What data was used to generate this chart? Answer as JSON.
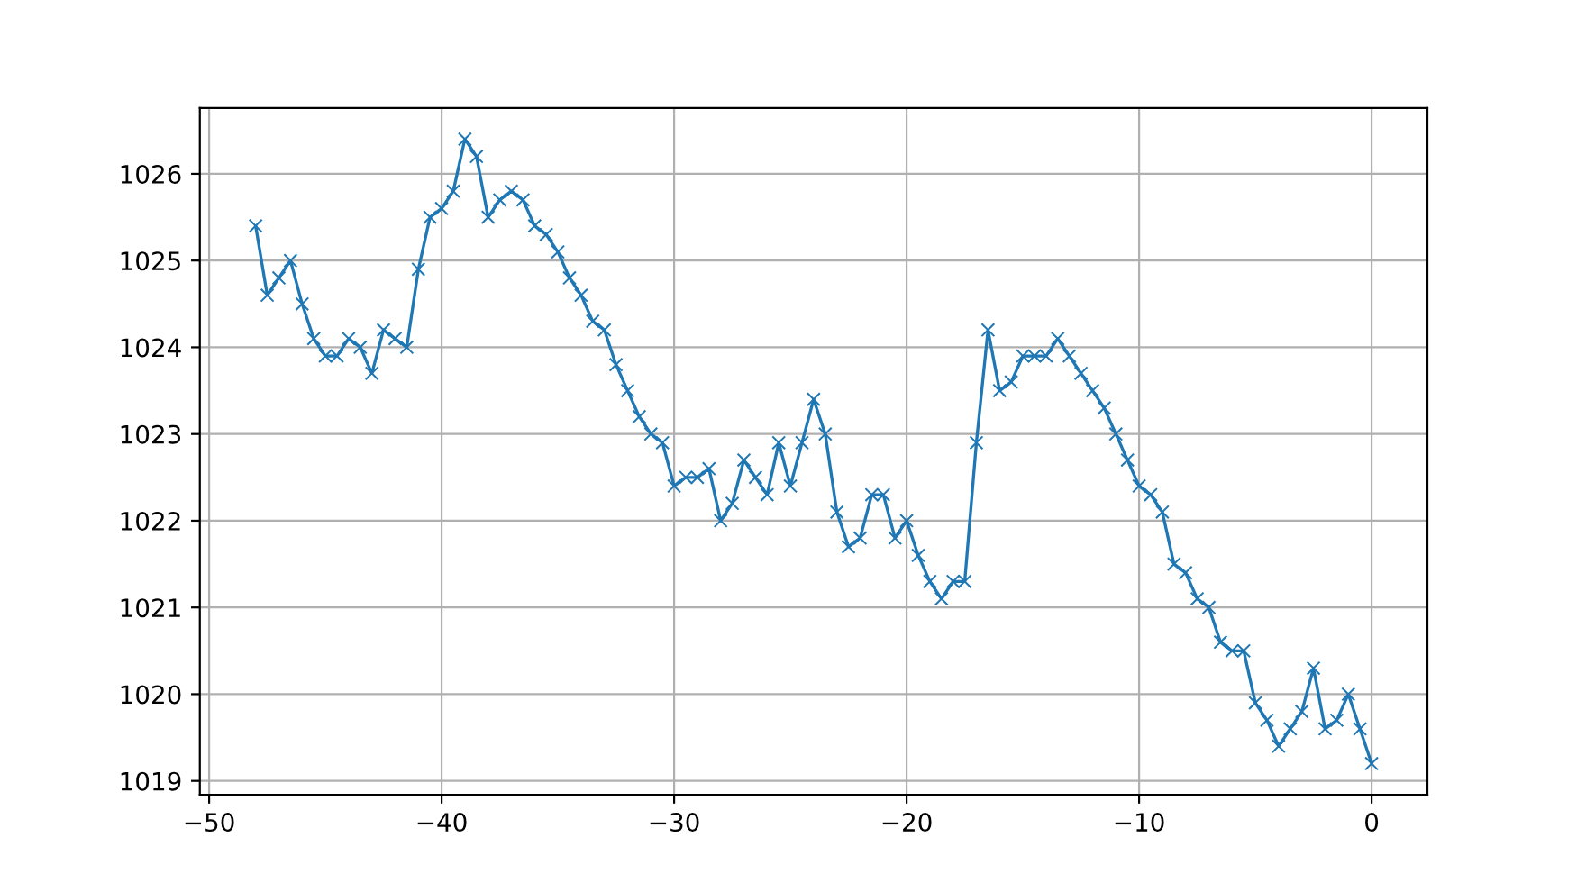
{
  "chart_data": {
    "type": "line",
    "x": [
      -48,
      -47.5,
      -47,
      -46.5,
      -46,
      -45.5,
      -45,
      -44.5,
      -44,
      -43.5,
      -43,
      -42.5,
      -42,
      -41.5,
      -41,
      -40.5,
      -40,
      -39.5,
      -39,
      -38.5,
      -38,
      -37.5,
      -37,
      -36.5,
      -36,
      -35.5,
      -35,
      -34.5,
      -34,
      -33.5,
      -33,
      -32.5,
      -32,
      -31.5,
      -31,
      -30.5,
      -30,
      -29.5,
      -29,
      -28.5,
      -28,
      -27.5,
      -27,
      -26.5,
      -26,
      -25.5,
      -25,
      -24.5,
      -24,
      -23.5,
      -23,
      -22.5,
      -22,
      -21.5,
      -21,
      -20.5,
      -20,
      -19.5,
      -19,
      -18.5,
      -18,
      -17.5,
      -17,
      -16.5,
      -16,
      -15.5,
      -15,
      -14.5,
      -14,
      -13.5,
      -13,
      -12.5,
      -12,
      -11.5,
      -11,
      -10.5,
      -10,
      -9.5,
      -9,
      -8.5,
      -8,
      -7.5,
      -7,
      -6.5,
      -6,
      -5.5,
      -5,
      -4.5,
      -4,
      -3.5,
      -3,
      -2.5,
      -2,
      -1.5,
      -1,
      -0.5,
      0
    ],
    "series": [
      {
        "color": "#1f77b4",
        "values": [
          1025.4,
          1024.6,
          1024.8,
          1025.0,
          1024.5,
          1024.1,
          1023.9,
          1023.9,
          1024.1,
          1024.0,
          1023.7,
          1024.2,
          1024.1,
          1024.0,
          1024.9,
          1025.5,
          1025.6,
          1025.8,
          1026.4,
          1026.2,
          1025.5,
          1025.7,
          1025.8,
          1025.7,
          1025.4,
          1025.3,
          1025.1,
          1024.8,
          1024.6,
          1024.3,
          1024.2,
          1023.8,
          1023.5,
          1023.2,
          1023.0,
          1022.9,
          1022.4,
          1022.5,
          1022.5,
          1022.6,
          1022.0,
          1022.2,
          1022.7,
          1022.5,
          1022.3,
          1022.9,
          1022.4,
          1022.9,
          1023.4,
          1023.0,
          1022.1,
          1021.7,
          1021.8,
          1022.3,
          1022.3,
          1021.8,
          1022.0,
          1021.6,
          1021.3,
          1021.1,
          1021.3,
          1021.3,
          1022.9,
          1024.2,
          1023.5,
          1023.6,
          1023.9,
          1023.9,
          1023.9,
          1024.1,
          1023.9,
          1023.7,
          1023.5,
          1023.3,
          1023.0,
          1022.7,
          1022.4,
          1022.3,
          1022.1,
          1021.5,
          1021.4,
          1021.1,
          1021.0,
          1020.6,
          1020.5,
          1020.5,
          1019.9,
          1019.7,
          1019.4,
          1019.6,
          1019.8,
          1020.3,
          1019.6,
          1019.7,
          1020.0,
          1019.6,
          1019.2
        ]
      }
    ],
    "xlim": [
      -50.4,
      2.4
    ],
    "ylim": [
      1018.84,
      1026.76
    ],
    "xticks": [
      {
        "value": -50,
        "label": "−50"
      },
      {
        "value": -40,
        "label": "−40"
      },
      {
        "value": -30,
        "label": "−30"
      },
      {
        "value": -20,
        "label": "−20"
      },
      {
        "value": -10,
        "label": "−10"
      },
      0
    ],
    "yticks": [
      1019,
      1020,
      1021,
      1022,
      1023,
      1024,
      1025,
      1026
    ],
    "grid": true,
    "marker": "cross",
    "line_style": "solid"
  }
}
